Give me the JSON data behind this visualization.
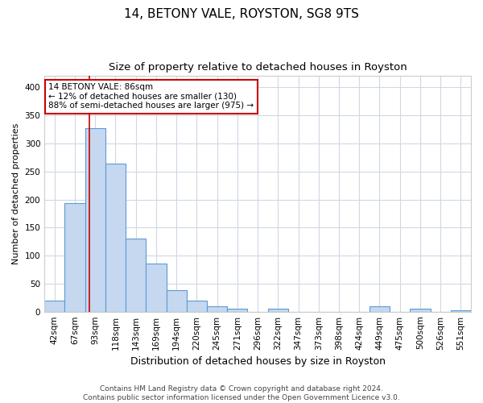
{
  "title1": "14, BETONY VALE, ROYSTON, SG8 9TS",
  "title2": "Size of property relative to detached houses in Royston",
  "xlabel": "Distribution of detached houses by size in Royston",
  "ylabel": "Number of detached properties",
  "bar_labels": [
    "42sqm",
    "67sqm",
    "93sqm",
    "118sqm",
    "143sqm",
    "169sqm",
    "194sqm",
    "220sqm",
    "245sqm",
    "271sqm",
    "296sqm",
    "322sqm",
    "347sqm",
    "373sqm",
    "398sqm",
    "424sqm",
    "449sqm",
    "475sqm",
    "500sqm",
    "526sqm",
    "551sqm"
  ],
  "bar_heights": [
    20,
    193,
    327,
    264,
    130,
    86,
    38,
    20,
    10,
    6,
    0,
    5,
    0,
    0,
    0,
    0,
    10,
    0,
    5,
    0,
    3
  ],
  "bar_color": "#c5d8ef",
  "bar_edge_color": "#5b9bd5",
  "annotation_line1": "14 BETONY VALE: 86sqm",
  "annotation_line2": "← 12% of detached houses are smaller (130)",
  "annotation_line3": "88% of semi-detached houses are larger (975) →",
  "annotation_box_color": "#ffffff",
  "annotation_box_edge_color": "#cc0000",
  "red_line_x": 1.72,
  "ylim": [
    0,
    420
  ],
  "yticks": [
    0,
    50,
    100,
    150,
    200,
    250,
    300,
    350,
    400
  ],
  "footnote": "Contains HM Land Registry data © Crown copyright and database right 2024.\nContains public sector information licensed under the Open Government Licence v3.0.",
  "background_color": "#ffffff",
  "grid_color": "#d0d8e4",
  "title1_fontsize": 11,
  "title2_fontsize": 9.5,
  "xlabel_fontsize": 9,
  "ylabel_fontsize": 8,
  "tick_fontsize": 7.5,
  "annot_fontsize": 7.5,
  "footnote_fontsize": 6.5
}
